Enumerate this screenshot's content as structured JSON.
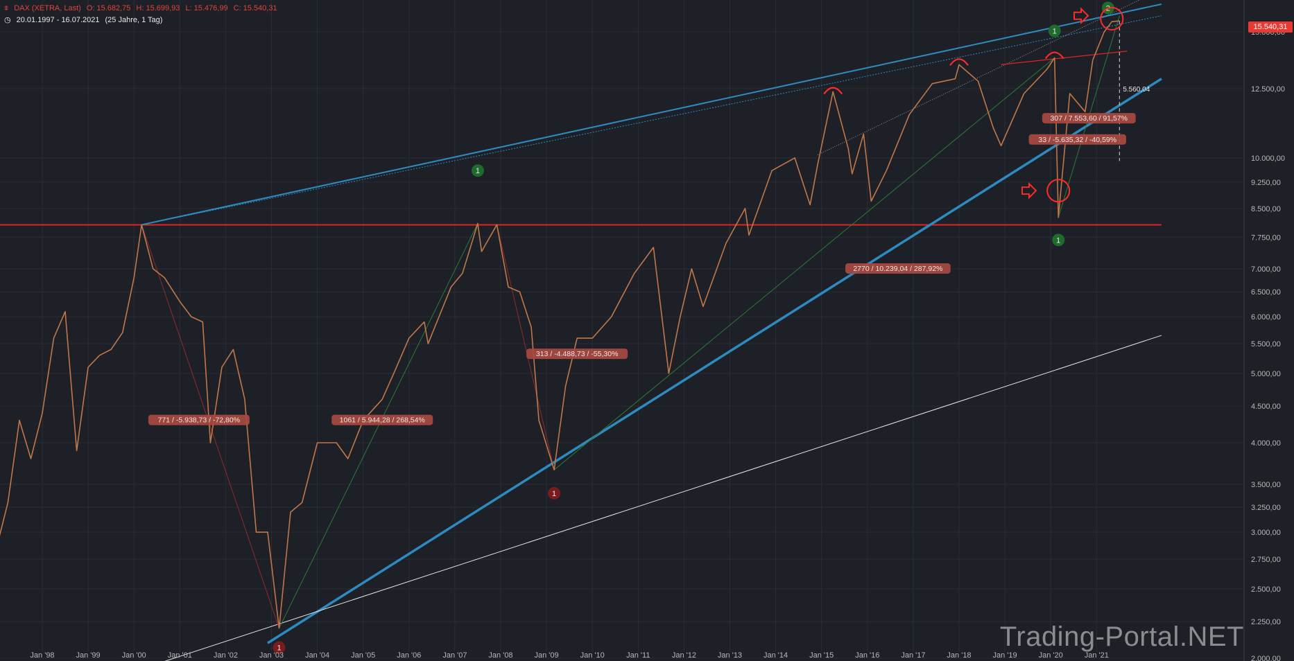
{
  "header": {
    "symbol": "DAX (XETRA, Last)",
    "open": "O: 15.682,75",
    "high": "H: 15.699,93",
    "low": "L: 15.476,99",
    "close": "C: 15.540,31",
    "range": "20.01.1997 - 16.07.2021",
    "period": "(25 Jahre, 1 Tag)"
  },
  "last_price_label": "15.540,31",
  "watermark": "Trading-Portal.NET",
  "colors": {
    "background": "#1e2027",
    "trend_blue": "#2e8bc0",
    "support_red": "#e02424",
    "bull_green": "#2e9a3f",
    "bear_red": "#c62828",
    "label_bg": "#a84a42"
  },
  "chart_data": {
    "type": "line",
    "title": "",
    "xlabel": "",
    "ylabel": "",
    "y_scale": "log",
    "ylim": [
      2000,
      16200
    ],
    "x_tick_labels": [
      "Jan '98",
      "Jan '99",
      "Jan '00",
      "Jan '01",
      "Jan '02",
      "Jan '03",
      "Jan '04",
      "Jan '05",
      "Jan '06",
      "Jan '07",
      "Jan '08",
      "Jan '09",
      "Jan '10",
      "Jan '11",
      "Jan '12",
      "Jan '13",
      "Jan '14",
      "Jan '15",
      "Jan '16",
      "Jan '17",
      "Jan '18",
      "Jan '19",
      "Jan '20",
      "Jan '21"
    ],
    "y_tick_labels": [
      "15.000,00",
      "12.500,00",
      "10.000,00",
      "9.250,00",
      "8.500,00",
      "7.750,00",
      "7.000,00",
      "6.500,00",
      "6.000,00",
      "5.500,00",
      "5.000,00",
      "4.500,00",
      "4.000,00",
      "3.500,00",
      "3.250,00",
      "3.000,00",
      "2.750,00",
      "2.500,00",
      "2.250,00",
      "2.000,00"
    ],
    "y_tick_values": [
      15000,
      12500,
      10000,
      9250,
      8500,
      7750,
      7000,
      6500,
      6000,
      5500,
      5000,
      4500,
      4000,
      3500,
      3250,
      3000,
      2750,
      2500,
      2250,
      2000
    ],
    "series": [
      {
        "values_date": [
          "1997-01",
          "1997-04",
          "1997-07",
          "1997-10",
          "1998-01",
          "1998-04",
          "1998-07",
          "1998-10",
          "1999-01",
          "1999-04",
          "1999-07",
          "1999-10",
          "2000-01",
          "2000-03",
          "2000-06",
          "2000-09",
          "2001-01",
          "2001-04",
          "2001-07",
          "2001-09",
          "2001-12",
          "2002-03",
          "2002-06",
          "2002-09",
          "2002-12",
          "2003-03",
          "2003-06",
          "2003-09",
          "2004-01",
          "2004-06",
          "2004-09",
          "2005-01",
          "2005-06",
          "2005-09",
          "2006-01",
          "2006-05",
          "2006-06",
          "2006-12",
          "2007-03",
          "2007-07",
          "2007-08",
          "2007-12",
          "2008-03",
          "2008-06",
          "2008-09",
          "2008-11",
          "2009-03",
          "2009-06",
          "2009-09",
          "2010-01",
          "2010-06",
          "2010-12",
          "2011-05",
          "2011-09",
          "2011-12",
          "2012-03",
          "2012-06",
          "2012-12",
          "2013-05",
          "2013-06",
          "2013-12",
          "2014-06",
          "2014-10",
          "2014-12",
          "2015-04",
          "2015-08",
          "2015-09",
          "2015-12",
          "2016-02",
          "2016-06",
          "2016-12",
          "2017-06",
          "2017-12",
          "2018-01",
          "2018-06",
          "2018-10",
          "2018-12",
          "2019-06",
          "2019-12",
          "2020-02",
          "2020-03",
          "2020-06",
          "2020-10",
          "2020-12",
          "2021-03",
          "2021-05",
          "2021-07"
        ],
        "values": [
          2850,
          3300,
          4300,
          3800,
          4400,
          5600,
          6100,
          3900,
          5100,
          5300,
          5400,
          5700,
          6800,
          8064,
          7000,
          6800,
          6300,
          6000,
          5900,
          4000,
          5100,
          5400,
          4600,
          3000,
          3000,
          2203,
          3200,
          3300,
          4000,
          4000,
          3800,
          4300,
          4600,
          5000,
          5600,
          5900,
          5500,
          6600,
          6900,
          8100,
          7400,
          8067,
          6600,
          6500,
          5800,
          4300,
          3666,
          4800,
          5600,
          5600,
          6000,
          6900,
          7500,
          5000,
          6000,
          7000,
          6200,
          7600,
          8500,
          7800,
          9600,
          10000,
          8600,
          9800,
          12375,
          10300,
          9500,
          10800,
          8700,
          9600,
          11500,
          12700,
          12900,
          13500,
          12800,
          11000,
          10400,
          12300,
          13300,
          13800,
          8256,
          12300,
          11600,
          13700,
          15000,
          15500,
          15540
        ]
      }
    ],
    "annotations": [
      {
        "text": "771 / -5.938,73 / -72,80%",
        "from": [
          "2000-03",
          8064
        ],
        "to": [
          "2003-03",
          2203
        ]
      },
      {
        "text": "1061 / 5.944,28 / 268,54%",
        "from": [
          "2003-03",
          2203
        ],
        "to": [
          "2007-07",
          8100
        ]
      },
      {
        "text": "313 / -4.488,73 / -55,30%",
        "from": [
          "2007-12",
          8067
        ],
        "to": [
          "2009-03",
          3666
        ]
      },
      {
        "text": "2770 / 10.239,04 / 287,92%",
        "from": [
          "2009-03",
          3666
        ],
        "to": [
          "2020-02",
          13800
        ]
      },
      {
        "text": "33 / -5.635,32 / -40,59%",
        "from": [
          "2020-02",
          13800
        ],
        "to": [
          "2020-03",
          8256
        ]
      },
      {
        "text": "307 / 7.553,60 / 91,57%",
        "from": [
          "2020-03",
          8256
        ],
        "to": [
          "2021-07",
          15800
        ]
      },
      {
        "text": "5.560,04"
      }
    ],
    "wave_markers": [
      {
        "label": "1",
        "date": "2007-07",
        "value": 9600,
        "color": "green"
      },
      {
        "label": "1",
        "date": "2009-03",
        "value": 3400,
        "color": "red"
      },
      {
        "label": "1",
        "date": "2003-03",
        "value": 2070,
        "color": "red"
      },
      {
        "label": "1",
        "date": "2020-02",
        "value": 15050,
        "color": "green"
      },
      {
        "label": "1",
        "date": "2020-03",
        "value": 7680,
        "color": "green"
      },
      {
        "label": "2",
        "date": "2021-04",
        "value": 16200,
        "color": "green"
      }
    ],
    "grid": true,
    "legend": "none"
  }
}
